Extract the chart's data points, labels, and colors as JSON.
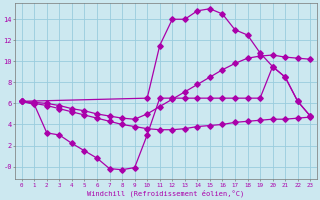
{
  "xlabel": "Windchill (Refroidissement éolien,°C)",
  "bg_color": "#cce8f0",
  "grid_color": "#99ccdd",
  "line_color": "#aa00aa",
  "xlim": [
    -0.5,
    23.5
  ],
  "ylim": [
    -1.2,
    15.5
  ],
  "yticks": [
    0,
    2,
    4,
    6,
    8,
    10,
    12,
    14
  ],
  "ytick_labels": [
    "-0",
    "2",
    "4",
    "6",
    "8",
    "10",
    "12",
    "14"
  ],
  "curve_top_x": [
    0,
    10,
    11,
    12,
    13,
    14,
    15,
    16,
    17,
    18,
    19,
    20,
    21,
    22,
    23
  ],
  "curve_top_y": [
    6.2,
    6.5,
    11.5,
    14.0,
    14.0,
    14.8,
    15.0,
    14.5,
    13.0,
    12.5,
    10.8,
    9.5,
    8.5,
    6.2,
    4.8
  ],
  "curve_mid1_x": [
    0,
    1,
    2,
    3,
    4,
    5,
    6,
    7,
    8,
    9,
    10,
    11,
    12,
    13,
    14,
    15,
    16,
    17,
    18,
    19,
    20,
    21,
    22,
    23
  ],
  "curve_mid1_y": [
    6.2,
    6.1,
    6.0,
    5.8,
    5.5,
    5.3,
    5.0,
    4.8,
    4.6,
    4.5,
    5.0,
    5.7,
    6.4,
    7.1,
    7.8,
    8.5,
    9.2,
    9.8,
    10.3,
    10.5,
    10.6,
    10.4,
    10.3,
    10.2
  ],
  "curve_mid2_x": [
    0,
    1,
    2,
    3,
    4,
    5,
    6,
    7,
    8,
    9,
    10,
    11,
    12,
    13,
    14,
    15,
    16,
    17,
    18,
    19,
    20,
    21,
    22,
    23
  ],
  "curve_mid2_y": [
    6.2,
    6.0,
    5.8,
    5.5,
    5.2,
    4.9,
    4.6,
    4.3,
    4.0,
    3.8,
    3.6,
    3.5,
    3.5,
    3.6,
    3.8,
    3.9,
    4.0,
    4.2,
    4.3,
    4.4,
    4.5,
    4.5,
    4.6,
    4.7
  ],
  "curve_bot_x": [
    0,
    1,
    2,
    3,
    4,
    5,
    6,
    7,
    8,
    9,
    10,
    11,
    12,
    13,
    14,
    15,
    16,
    17,
    18,
    19,
    20,
    21,
    22,
    23
  ],
  "curve_bot_y": [
    6.2,
    5.9,
    3.2,
    3.0,
    2.2,
    1.5,
    0.8,
    -0.2,
    -0.3,
    -0.1,
    3.0,
    6.5,
    6.5,
    6.5,
    6.5,
    6.5,
    6.5,
    6.5,
    6.5,
    6.5,
    9.5,
    8.5,
    6.2,
    4.8
  ]
}
